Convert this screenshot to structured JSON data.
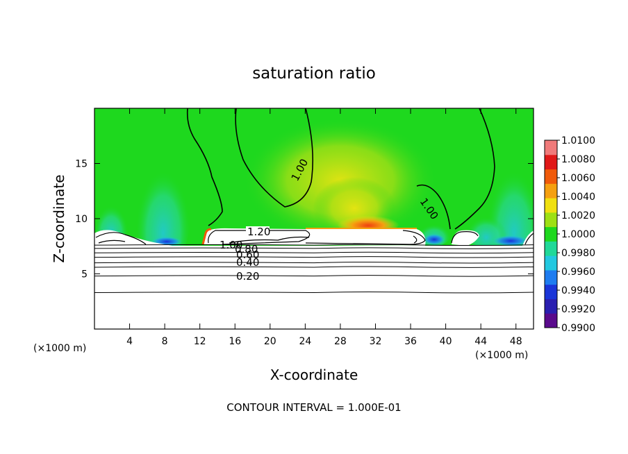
{
  "chart_data": {
    "type": "heatmap",
    "title": "saturation ratio",
    "xlabel": "X-coordinate",
    "ylabel": "Z-coordinate",
    "x_unit_note": "(×1000 m)",
    "x_unit_note_right": "(×1000 m)",
    "xlim": [
      0,
      50
    ],
    "ylim": [
      0,
      20
    ],
    "x_ticks": [
      4,
      8,
      12,
      16,
      20,
      24,
      28,
      32,
      36,
      40,
      44,
      48
    ],
    "x_tick_labels": [
      "4",
      "8",
      "12",
      "16",
      "20",
      "24",
      "28",
      "32",
      "36",
      "40",
      "44",
      "48"
    ],
    "y_ticks": [
      5,
      10,
      15
    ],
    "y_tick_labels": [
      "5",
      "10",
      "15"
    ],
    "colorbar": {
      "min": 0.99,
      "max": 1.01,
      "tick_labels": [
        "1.0100",
        "1.0080",
        "1.0060",
        "1.0040",
        "1.0020",
        "1.0000",
        "0.9980",
        "0.9960",
        "0.9940",
        "0.9920",
        "0.9900"
      ],
      "colors": [
        "#5a0a8c",
        "#2a1fb0",
        "#1a35d8",
        "#1e7cf0",
        "#22c8e0",
        "#20d898",
        "#1ed81e",
        "#9ee014",
        "#f0e010",
        "#f5a010",
        "#f05a0a",
        "#e01818",
        "#f07a7a"
      ]
    },
    "contour_labels": [
      "1.00",
      "1.00",
      "1.20",
      "1.00",
      "0.80",
      "0.60",
      "0.40",
      "0.20"
    ],
    "contour_level_lines_z": [
      3.3,
      4.8,
      5.6,
      6.0,
      6.5,
      6.9,
      7.3,
      7.6
    ],
    "footer": "CONTOUR INTERVAL = 1.000E-01"
  }
}
